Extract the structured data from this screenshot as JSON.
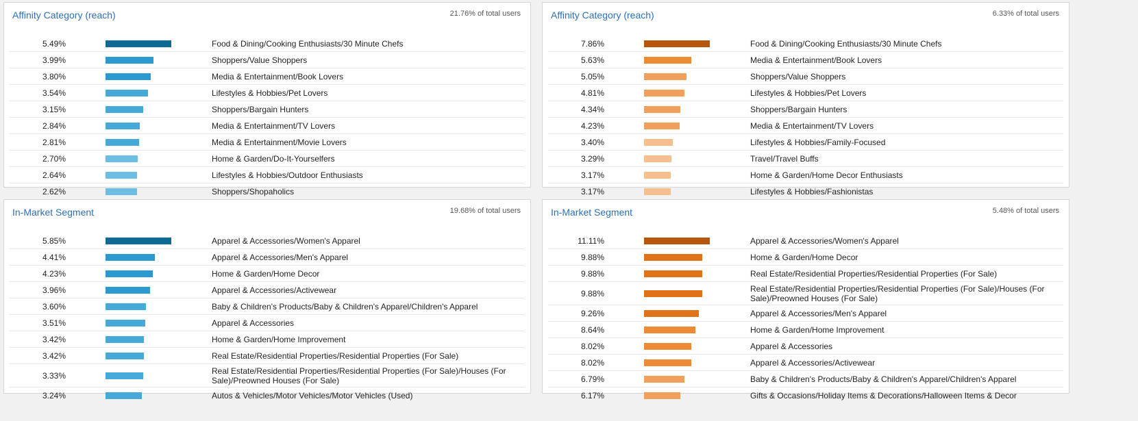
{
  "panels": [
    {
      "title": "Affinity Category (reach)",
      "total": "21.76% of total users",
      "palette": "blue",
      "rows": [
        {
          "pct": "5.49%",
          "value": 5.49,
          "label": "Food & Dining/Cooking Enthusiasts/30 Minute Chefs"
        },
        {
          "pct": "3.99%",
          "value": 3.99,
          "label": "Shoppers/Value Shoppers"
        },
        {
          "pct": "3.80%",
          "value": 3.8,
          "label": "Media & Entertainment/Book Lovers"
        },
        {
          "pct": "3.54%",
          "value": 3.54,
          "label": "Lifestyles & Hobbies/Pet Lovers"
        },
        {
          "pct": "3.15%",
          "value": 3.15,
          "label": "Shoppers/Bargain Hunters"
        },
        {
          "pct": "2.84%",
          "value": 2.84,
          "label": "Media & Entertainment/TV Lovers"
        },
        {
          "pct": "2.81%",
          "value": 2.81,
          "label": "Media & Entertainment/Movie Lovers"
        },
        {
          "pct": "2.70%",
          "value": 2.7,
          "label": "Home & Garden/Do-It-Yourselfers"
        },
        {
          "pct": "2.64%",
          "value": 2.64,
          "label": "Lifestyles & Hobbies/Outdoor Enthusiasts"
        },
        {
          "pct": "2.62%",
          "value": 2.62,
          "label": "Shoppers/Shopaholics"
        }
      ]
    },
    {
      "title": "Affinity Category (reach)",
      "total": "6.33% of total users",
      "palette": "orange",
      "rows": [
        {
          "pct": "7.86%",
          "value": 7.86,
          "label": "Food & Dining/Cooking Enthusiasts/30 Minute Chefs"
        },
        {
          "pct": "5.63%",
          "value": 5.63,
          "label": "Media & Entertainment/Book Lovers"
        },
        {
          "pct": "5.05%",
          "value": 5.05,
          "label": "Shoppers/Value Shoppers"
        },
        {
          "pct": "4.81%",
          "value": 4.81,
          "label": "Lifestyles & Hobbies/Pet Lovers"
        },
        {
          "pct": "4.34%",
          "value": 4.34,
          "label": "Shoppers/Bargain Hunters"
        },
        {
          "pct": "4.23%",
          "value": 4.23,
          "label": "Media & Entertainment/TV Lovers"
        },
        {
          "pct": "3.40%",
          "value": 3.4,
          "label": "Lifestyles & Hobbies/Family-Focused"
        },
        {
          "pct": "3.29%",
          "value": 3.29,
          "label": "Travel/Travel Buffs"
        },
        {
          "pct": "3.17%",
          "value": 3.17,
          "label": "Home & Garden/Home Decor Enthusiasts"
        },
        {
          "pct": "3.17%",
          "value": 3.17,
          "label": "Lifestyles & Hobbies/Fashionistas"
        }
      ]
    },
    {
      "title": "In-Market Segment",
      "total": "19.68% of total users",
      "palette": "blue",
      "rows": [
        {
          "pct": "5.85%",
          "value": 5.85,
          "label": "Apparel & Accessories/Women's Apparel"
        },
        {
          "pct": "4.41%",
          "value": 4.41,
          "label": "Apparel & Accessories/Men's Apparel"
        },
        {
          "pct": "4.23%",
          "value": 4.23,
          "label": "Home & Garden/Home Decor"
        },
        {
          "pct": "3.96%",
          "value": 3.96,
          "label": "Apparel & Accessories/Activewear"
        },
        {
          "pct": "3.60%",
          "value": 3.6,
          "label": "Baby & Children's Products/Baby & Children's Apparel/Children's Apparel"
        },
        {
          "pct": "3.51%",
          "value": 3.51,
          "label": "Apparel & Accessories"
        },
        {
          "pct": "3.42%",
          "value": 3.42,
          "label": "Home & Garden/Home Improvement"
        },
        {
          "pct": "3.42%",
          "value": 3.42,
          "label": "Real Estate/Residential Properties/Residential Properties (For Sale)"
        },
        {
          "pct": "3.33%",
          "value": 3.33,
          "label": "Real Estate/Residential Properties/Residential Properties (For Sale)/Houses (For Sale)/Preowned Houses (For Sale)",
          "tall": true
        },
        {
          "pct": "3.24%",
          "value": 3.24,
          "label": "Autos & Vehicles/Motor Vehicles/Motor Vehicles (Used)"
        }
      ]
    },
    {
      "title": "In-Market Segment",
      "total": "5.48% of total users",
      "palette": "orange",
      "rows": [
        {
          "pct": "11.11%",
          "value": 11.11,
          "label": "Apparel & Accessories/Women's Apparel"
        },
        {
          "pct": "9.88%",
          "value": 9.88,
          "label": "Home & Garden/Home Decor"
        },
        {
          "pct": "9.88%",
          "value": 9.88,
          "label": "Real Estate/Residential Properties/Residential Properties (For Sale)"
        },
        {
          "pct": "9.88%",
          "value": 9.88,
          "label": "Real Estate/Residential Properties/Residential Properties (For Sale)/Houses (For Sale)/Preowned Houses (For Sale)",
          "tall": true
        },
        {
          "pct": "9.26%",
          "value": 9.26,
          "label": "Apparel & Accessories/Men's Apparel"
        },
        {
          "pct": "8.64%",
          "value": 8.64,
          "label": "Home & Garden/Home Improvement"
        },
        {
          "pct": "8.02%",
          "value": 8.02,
          "label": "Apparel & Accessories"
        },
        {
          "pct": "8.02%",
          "value": 8.02,
          "label": "Apparel & Accessories/Activewear"
        },
        {
          "pct": "6.79%",
          "value": 6.79,
          "label": "Baby & Children's Products/Baby & Children's Apparel/Children's Apparel"
        },
        {
          "pct": "6.17%",
          "value": 6.17,
          "label": "Gifts & Occasions/Holiday Items & Decorations/Halloween Items & Decor"
        }
      ]
    }
  ],
  "colors": {
    "blue": [
      "#0f6a96",
      "#1a8bc6",
      "#2a99d0",
      "#45a9da",
      "#6bbde2"
    ],
    "orange": [
      "#b8560e",
      "#e0731a",
      "#ec8a36",
      "#f0a05c",
      "#f6c08e"
    ]
  }
}
